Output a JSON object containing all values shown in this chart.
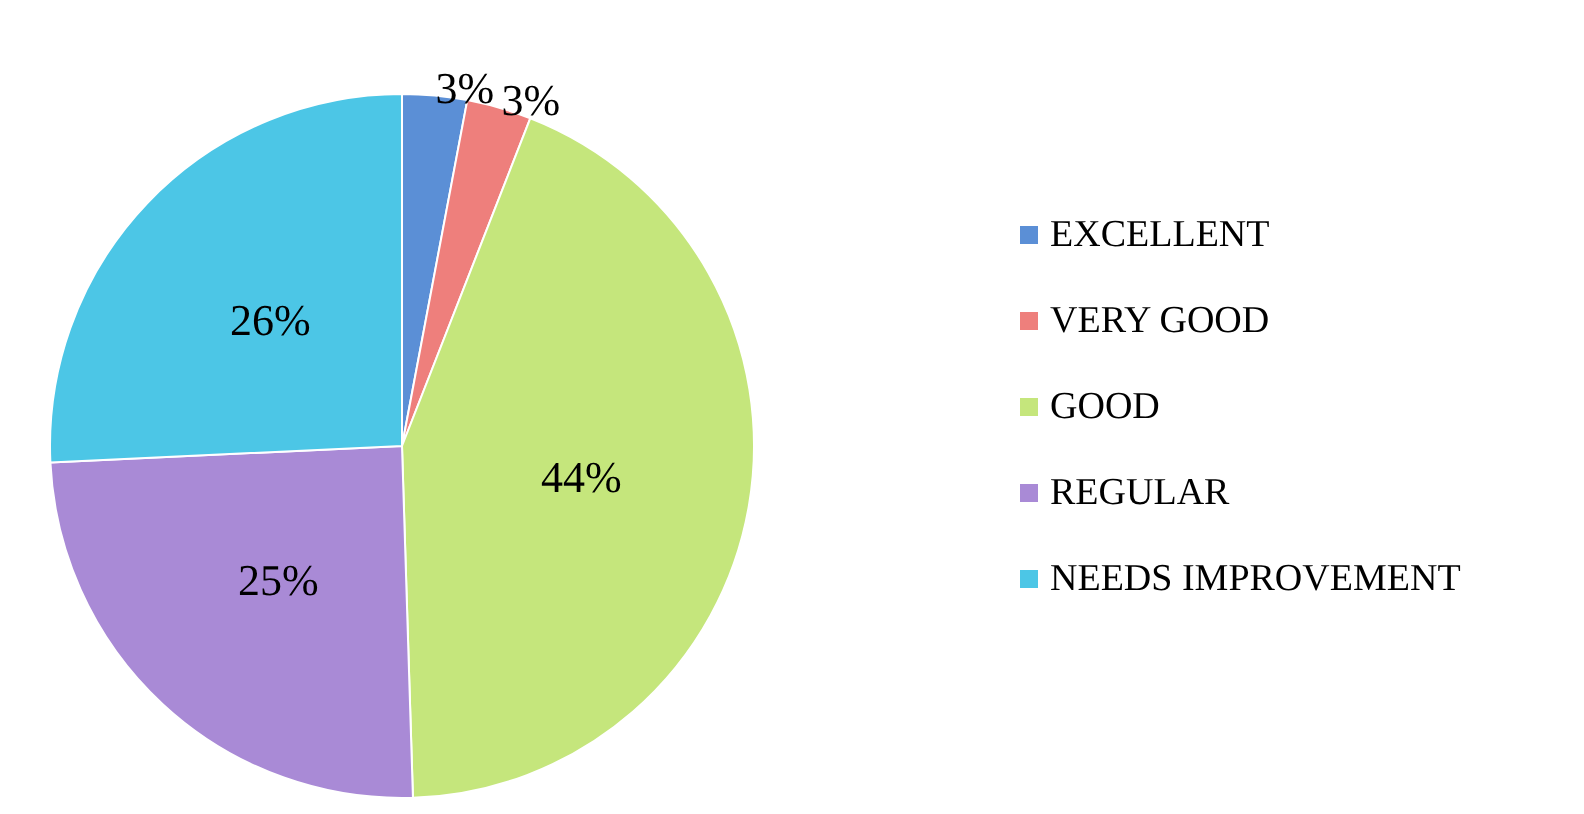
{
  "chart_data": {
    "type": "pie",
    "categories": [
      "EXCELLENT",
      "VERY GOOD",
      "GOOD",
      "REGULAR",
      "NEEDS IMPROVEMENT"
    ],
    "values": [
      3,
      3,
      44,
      25,
      26
    ],
    "value_labels": [
      "3%",
      "3%",
      "44%",
      "25%",
      "26%"
    ],
    "colors": [
      "#5b8fd6",
      "#ee7f7c",
      "#c5e67c",
      "#a98ad6",
      "#4cc6e6"
    ],
    "legend": "right"
  }
}
